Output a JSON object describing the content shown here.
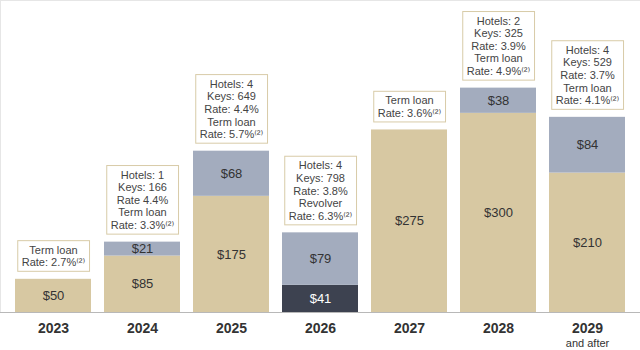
{
  "chart_data": {
    "type": "bar",
    "stacked": true,
    "data_labels": true,
    "grid": false,
    "tick_labels": "x",
    "categories": [
      "2023",
      "2024",
      "2025",
      "2026",
      "2027",
      "2028",
      "2029\nand after"
    ],
    "ylim": [
      0,
      470
    ],
    "yticks": [],
    "series": [
      {
        "color": "#d7c8a2",
        "values": [
          50,
          85,
          175,
          null,
          275,
          300,
          210
        ],
        "value_labels": [
          "$50",
          "$85",
          "$175",
          null,
          "$275",
          "$300",
          "$210"
        ]
      },
      {
        "color": "#3d4250",
        "values": [
          null,
          null,
          null,
          41,
          null,
          null,
          null
        ],
        "value_labels": [
          null,
          null,
          null,
          "$41",
          null,
          null,
          null
        ]
      },
      {
        "color": "#a3acbe",
        "values": [
          null,
          21,
          68,
          79,
          null,
          38,
          84
        ],
        "value_labels": [
          null,
          "$21",
          "$68",
          "$79",
          null,
          "$38",
          "$84"
        ]
      }
    ],
    "annotations": [
      {
        "category": "2023",
        "text": [
          "Term loan",
          "Rate: 2.7%⁽²⁾"
        ]
      },
      {
        "category": "2024",
        "text": [
          "Hotels: 1",
          "Keys: 166",
          "Rate 4.4%",
          "Term loan",
          "Rate: 3.3%⁽²⁾"
        ]
      },
      {
        "category": "2025",
        "text": [
          "Hotels: 4",
          "Keys: 649",
          "Rate: 4.4%",
          "Term loan",
          "Rate: 5.7%⁽²⁾"
        ]
      },
      {
        "category": "2026",
        "text": [
          "Hotels: 4",
          "Keys: 798",
          "Rate: 3.8%",
          "Revolver",
          "Rate: 6.3%⁽²⁾"
        ]
      },
      {
        "category": "2027",
        "text": [
          "Term loan",
          "Rate: 3.6%⁽²⁾"
        ]
      },
      {
        "category": "2028",
        "text": [
          "Hotels: 2",
          "Keys: 325",
          "Rate: 3.9%",
          "Term loan",
          "Rate: 4.9%⁽²⁾"
        ]
      },
      {
        "category": "2029\nand after",
        "text": [
          "Hotels: 4",
          "Keys: 529",
          "Rate: 3.7%",
          "Term loan",
          "Rate: 4.1%⁽²⁾"
        ]
      }
    ]
  }
}
